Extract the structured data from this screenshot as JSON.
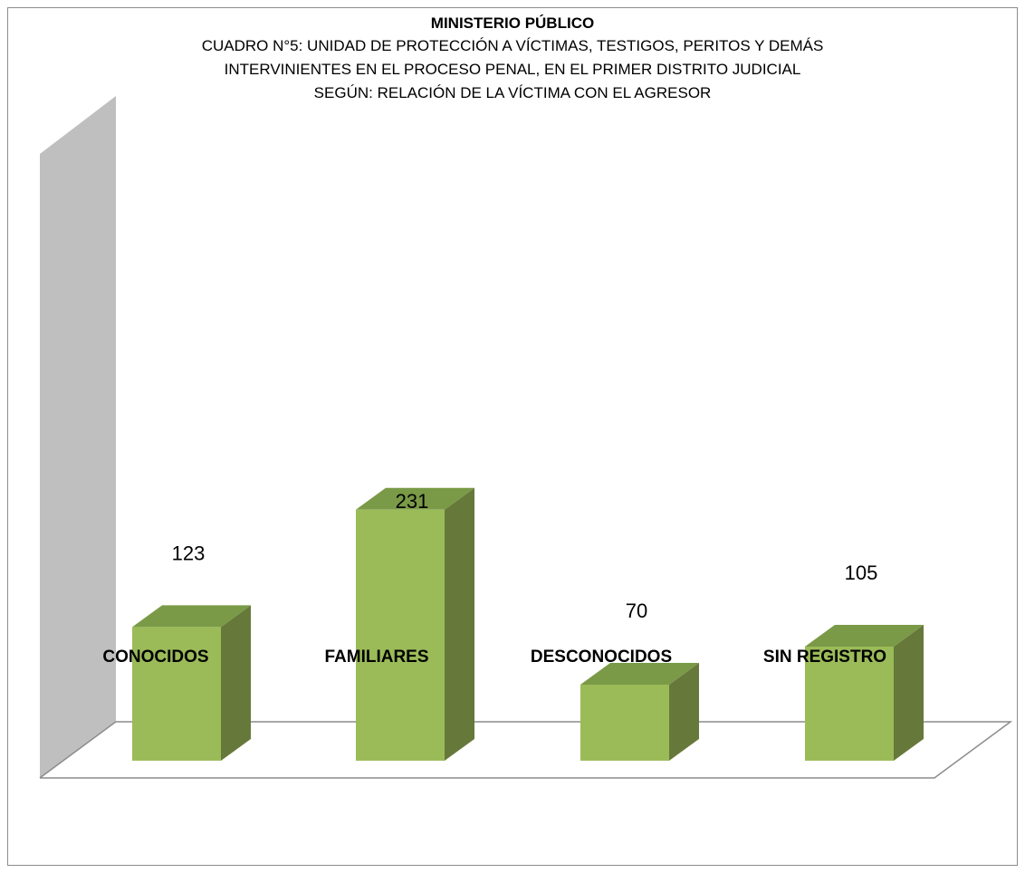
{
  "chart_data": {
    "type": "bar",
    "title": "MINISTERIO PÚBLICO",
    "subtitle_lines": [
      "CUADRO N°5: UNIDAD DE PROTECCIÓN  A VÍCTIMAS, TESTIGOS, PERITOS Y DEMÁS",
      "INTERVINIENTES EN EL PROCESO PENAL, EN EL PRIMER DISTRITO JUDICIAL",
      "SEGÚN: RELACIÓN DE LA VÍCTIMA CON EL AGRESOR"
    ],
    "categories": [
      "CONOCIDOS",
      "FAMILIARES",
      "DESCONOCIDOS",
      "SIN REGISTRO"
    ],
    "values": [
      123,
      231,
      70,
      105
    ],
    "data_labels": [
      "123",
      "231",
      "70",
      "105"
    ],
    "ylim": [
      0,
      250
    ],
    "grid": false,
    "legend": "none",
    "colors": {
      "bar_front": "#9bbb59",
      "bar_top": "#7a9a47",
      "bar_side": "#66793a",
      "back_wall": "#bfbfbf",
      "floor_line": "#8c8c8c"
    }
  }
}
